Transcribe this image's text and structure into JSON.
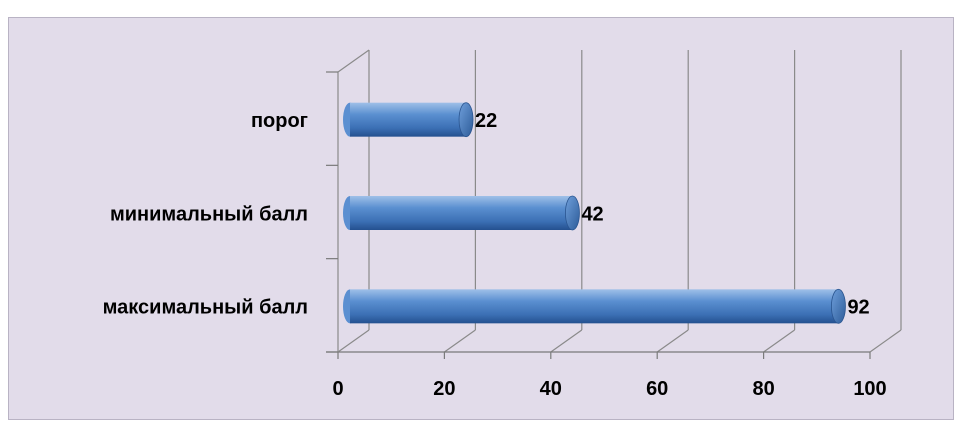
{
  "chart_data": {
    "type": "bar",
    "orientation": "horizontal",
    "style": "3d-cylinder",
    "categories": [
      "порог",
      "минимальный балл",
      "максимальный балл"
    ],
    "values": [
      22,
      42,
      92
    ],
    "data_labels": [
      "22",
      "42",
      "92"
    ],
    "xlim": [
      0,
      100
    ],
    "x_ticks": [
      0,
      20,
      40,
      60,
      80,
      100
    ],
    "x_tick_labels": [
      "0",
      "20",
      "40",
      "60",
      "80",
      "100"
    ],
    "grid": "vertical",
    "legend": "none",
    "bar_color": "#4f81bd",
    "bar_dark_color": "#2a5a96",
    "bar_light_color": "#8fb4e0",
    "background_color": "#e2dcea"
  }
}
